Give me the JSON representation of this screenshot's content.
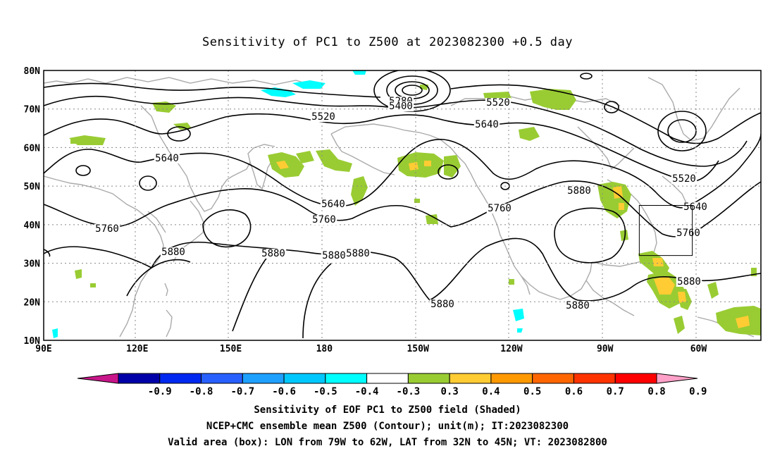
{
  "title": "Sensitivity of PC1 to Z500 at 2023082300 +0.5 day",
  "lat_labels": [
    "80N",
    "70N",
    "60N",
    "50N",
    "40N",
    "30N",
    "20N",
    "10N"
  ],
  "lon_labels": [
    "90E",
    "120E",
    "150E",
    "180",
    "150W",
    "120W",
    "90W",
    "60W"
  ],
  "contour_labels": [
    "5280",
    "5400",
    "5520",
    "5520",
    "5520",
    "5640",
    "5640",
    "5640",
    "5640",
    "5760",
    "5760",
    "5760",
    "5760",
    "5880",
    "5880",
    "5880",
    "5880",
    "5880",
    "5880",
    "5880",
    "5880"
  ],
  "colorbar": {
    "labels": [
      "-0.9",
      "-0.8",
      "-0.7",
      "-0.6",
      "-0.5",
      "-0.4",
      "-0.3",
      "0.3",
      "0.4",
      "0.5",
      "0.6",
      "0.7",
      "0.8",
      "0.9"
    ],
    "colors": [
      "#c8168a",
      "#0000a8",
      "#0028f0",
      "#2860ff",
      "#1ea0ff",
      "#00c8ff",
      "#00ffff",
      "#ffffff",
      "#99cc33",
      "#ffcc33",
      "#ff9900",
      "#ff6600",
      "#ff3300",
      "#ff0000",
      "#ffa0c8"
    ]
  },
  "box": {
    "lon_w": 79,
    "lon_e": 62,
    "lat_s": 32,
    "lat_n": 45
  },
  "footer": [
    "Sensitivity of EOF PC1 to Z500 field (Shaded)",
    "NCEP+CMC ensemble mean Z500 (Contour); unit(m); IT:2023082300",
    "Valid area (box): LON from 79W to 62W, LAT from 32N to 45N; VT: 2023082800"
  ]
}
